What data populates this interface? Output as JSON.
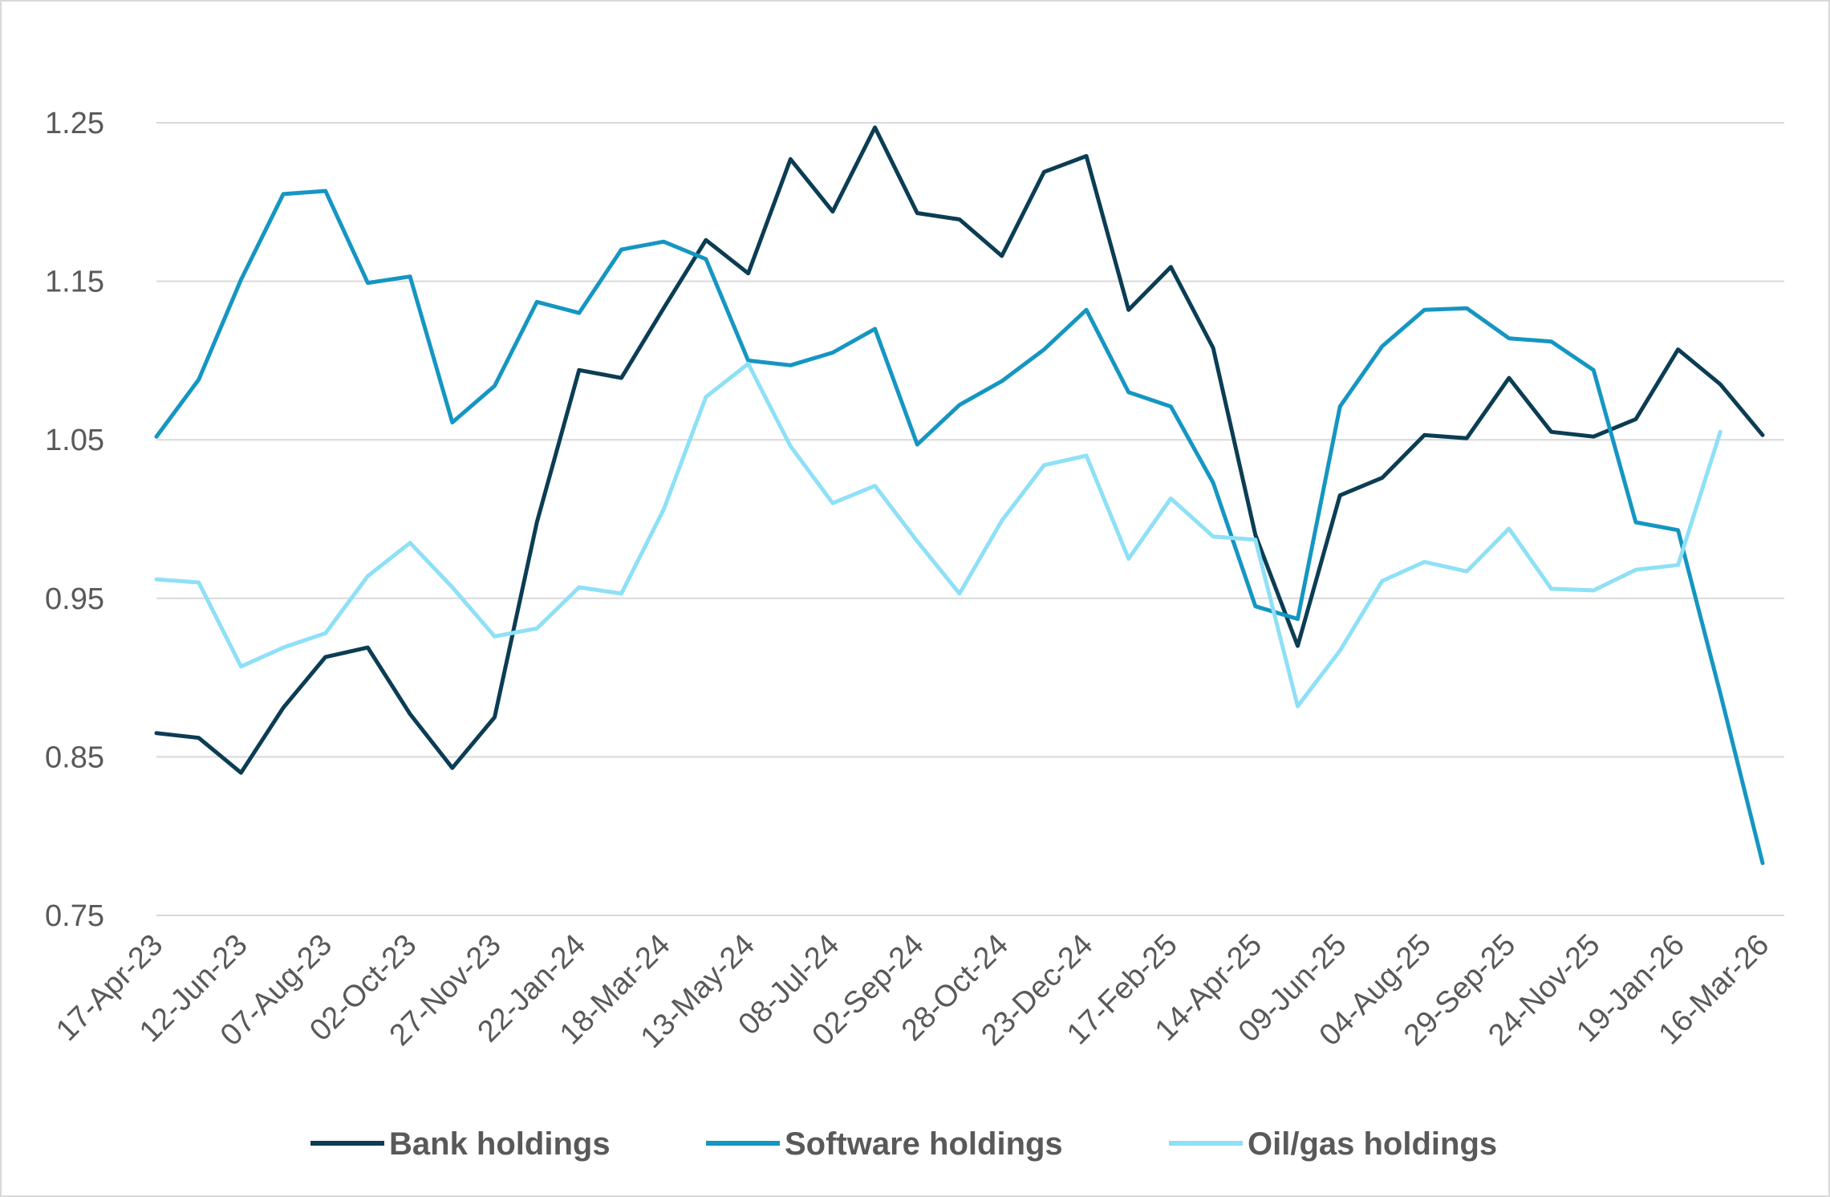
{
  "chart_data": {
    "type": "line",
    "title": "",
    "xlabel": "",
    "ylabel": "",
    "ylim": [
      0.75,
      1.3
    ],
    "yticks": [
      "1.25",
      "1.15",
      "1.05",
      "0.95",
      "0.85",
      "0.75"
    ],
    "grid": true,
    "legend_position": "bottom",
    "x": [
      "17-Apr-23",
      "15-May-23",
      "12-Jun-23",
      "10-Jul-23",
      "07-Aug-23",
      "04-Sep-23",
      "02-Oct-23",
      "30-Oct-23",
      "27-Nov-23",
      "25-Dec-23",
      "22-Jan-24",
      "19-Feb-24",
      "18-Mar-24",
      "15-Apr-24",
      "13-May-24",
      "10-Jun-24",
      "08-Jul-24",
      "05-Aug-24",
      "02-Sep-24",
      "30-Sep-24",
      "28-Oct-24",
      "25-Nov-24",
      "23-Dec-24",
      "20-Jan-25",
      "17-Feb-25",
      "17-Mar-25",
      "14-Apr-25",
      "12-May-25",
      "09-Jun-25",
      "07-Jul-25",
      "04-Aug-25",
      "01-Sep-25",
      "29-Sep-25",
      "27-Oct-25",
      "24-Nov-25",
      "22-Dec-25",
      "19-Jan-26",
      "16-Feb-26",
      "16-Mar-26"
    ],
    "xtick_labels": [
      "17-Apr-23",
      "12-Jun-23",
      "07-Aug-23",
      "02-Oct-23",
      "27-Nov-23",
      "22-Jan-24",
      "18-Mar-24",
      "13-May-24",
      "08-Jul-24",
      "02-Sep-24",
      "28-Oct-24",
      "23-Dec-24",
      "17-Feb-25",
      "14-Apr-25",
      "09-Jun-25",
      "04-Aug-25",
      "29-Sep-25",
      "24-Nov-25",
      "19-Jan-26",
      "16-Mar-26"
    ],
    "series": [
      {
        "name": "Bank holdings",
        "color": "#0b3d54",
        "values": [
          0.865,
          0.862,
          0.84,
          0.881,
          0.913,
          0.919,
          0.877,
          0.843,
          0.875,
          0.998,
          1.094,
          1.089,
          1.133,
          1.176,
          1.155,
          1.227,
          1.194,
          1.247,
          1.193,
          1.189,
          1.166,
          1.219,
          1.229,
          1.132,
          1.159,
          1.108,
          0.99,
          0.92,
          1.015,
          1.026,
          1.053,
          1.051,
          1.089,
          1.055,
          1.052,
          1.063,
          1.107,
          1.085,
          1.053
        ]
      },
      {
        "name": "Software holdings",
        "color": "#1596c2",
        "values": [
          1.052,
          1.088,
          1.151,
          1.205,
          1.207,
          1.149,
          1.153,
          1.061,
          1.084,
          1.137,
          1.13,
          1.17,
          1.175,
          1.164,
          1.1,
          1.097,
          1.105,
          1.12,
          1.047,
          1.072,
          1.087,
          1.107,
          1.132,
          1.08,
          1.071,
          1.023,
          0.945,
          0.937,
          1.071,
          1.109,
          1.132,
          1.133,
          1.114,
          1.112,
          1.094,
          0.998,
          0.993,
          0.89,
          0.783
        ]
      },
      {
        "name": "Oil/gas holdings",
        "color": "#8ee0f6",
        "values": [
          0.962,
          0.96,
          0.907,
          0.919,
          0.928,
          0.964,
          0.985,
          0.957,
          0.926,
          0.931,
          0.957,
          0.953,
          1.006,
          1.077,
          1.098,
          1.046,
          1.01,
          1.021,
          0.986,
          0.953,
          0.999,
          1.034,
          1.04,
          0.975,
          1.013,
          0.989,
          0.987,
          0.882,
          0.917,
          0.961,
          0.973,
          0.967,
          0.994,
          0.956,
          0.955,
          0.968,
          0.971,
          1.055,
          null
        ]
      }
    ]
  }
}
